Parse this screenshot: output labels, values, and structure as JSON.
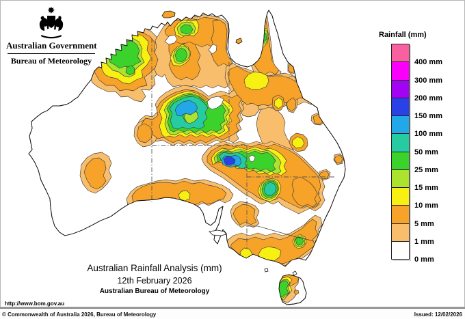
{
  "header": {
    "government_title": "Australian Government",
    "bureau_title": "Bureau of Meteorology"
  },
  "legend": {
    "title": "Rainfall (mm)",
    "entries": [
      {
        "label": "400 mm",
        "color": "#f8609f"
      },
      {
        "label": "300 mm",
        "color": "#fa00fa"
      },
      {
        "label": "200 mm",
        "color": "#a303f3"
      },
      {
        "label": "150 mm",
        "color": "#2a41e8"
      },
      {
        "label": "100 mm",
        "color": "#22a7e8"
      },
      {
        "label": "50 mm",
        "color": "#26cba2"
      },
      {
        "label": "25 mm",
        "color": "#3bd32b"
      },
      {
        "label": "15 mm",
        "color": "#ace32f"
      },
      {
        "label": "10 mm",
        "color": "#f8f012"
      },
      {
        "label": "5 mm",
        "color": "#f7a329"
      },
      {
        "label": "1 mm",
        "color": "#f9be6b"
      },
      {
        "label": "0 mm",
        "color": "#ffffff"
      }
    ]
  },
  "title_block": {
    "line1": "Australian Rainfall Analysis (mm)",
    "line2": "12th February 2026",
    "line3": "Australian Bureau of Meteorology"
  },
  "footer": {
    "url": "http://www.bom.gov.au",
    "copyright": "© Commonwealth of Australia 2026, Bureau of Meteorology",
    "issued": "Issued: 12/02/2026"
  }
}
